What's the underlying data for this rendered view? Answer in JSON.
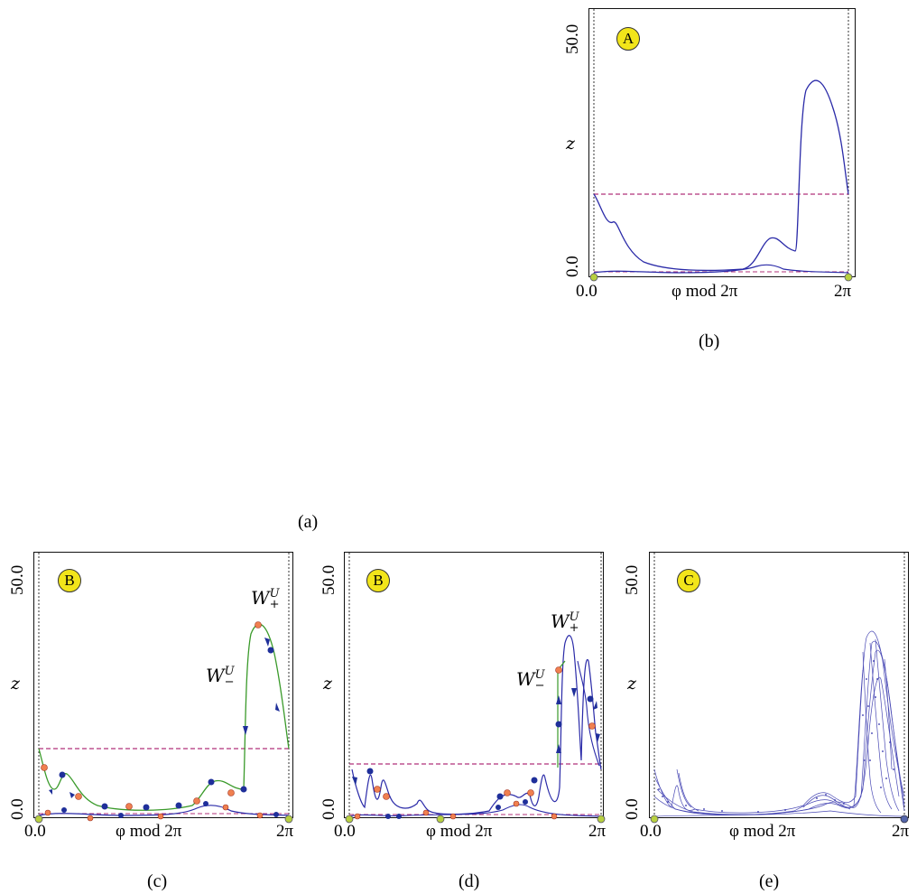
{
  "figure_label_a": "(a)",
  "panels": [
    {
      "id": "b",
      "caption": "(b)",
      "badge": "A",
      "y_top": "50.0",
      "y_bottom": "0.0",
      "y_label": "z",
      "x_left": "0.0",
      "x_mid": "φ  mod 2π",
      "x_right": "2π"
    },
    {
      "id": "c",
      "caption": "(c)",
      "badge": "B",
      "y_top": "50.0",
      "y_bottom": "0.0",
      "y_label": "z",
      "x_left": "0.0",
      "x_mid": "φ  mod 2π",
      "x_right": "2π",
      "w_plus": "W",
      "w_minus": "W"
    },
    {
      "id": "d",
      "caption": "(d)",
      "badge": "B",
      "y_top": "50.0",
      "y_bottom": "0.0",
      "y_label": "z",
      "x_left": "0.0",
      "x_mid": "φ  mod 2π",
      "x_right": "2π",
      "w_plus": "W",
      "w_minus": "W"
    },
    {
      "id": "e",
      "caption": "(e)",
      "badge": "C",
      "y_top": "50.0",
      "y_bottom": "0.0",
      "y_label": "z",
      "x_left": "0.0",
      "x_mid": "φ  mod 2π",
      "x_right": "2π"
    }
  ],
  "colors": {
    "curve": "#2a2aa8",
    "dashed": "#b0307a",
    "green": "#3a9a2a",
    "dot_blue": "#1f2f9a",
    "dot_orange": "#f08050",
    "badge": "#f2e51a",
    "endpoint": "#b8d040"
  }
}
